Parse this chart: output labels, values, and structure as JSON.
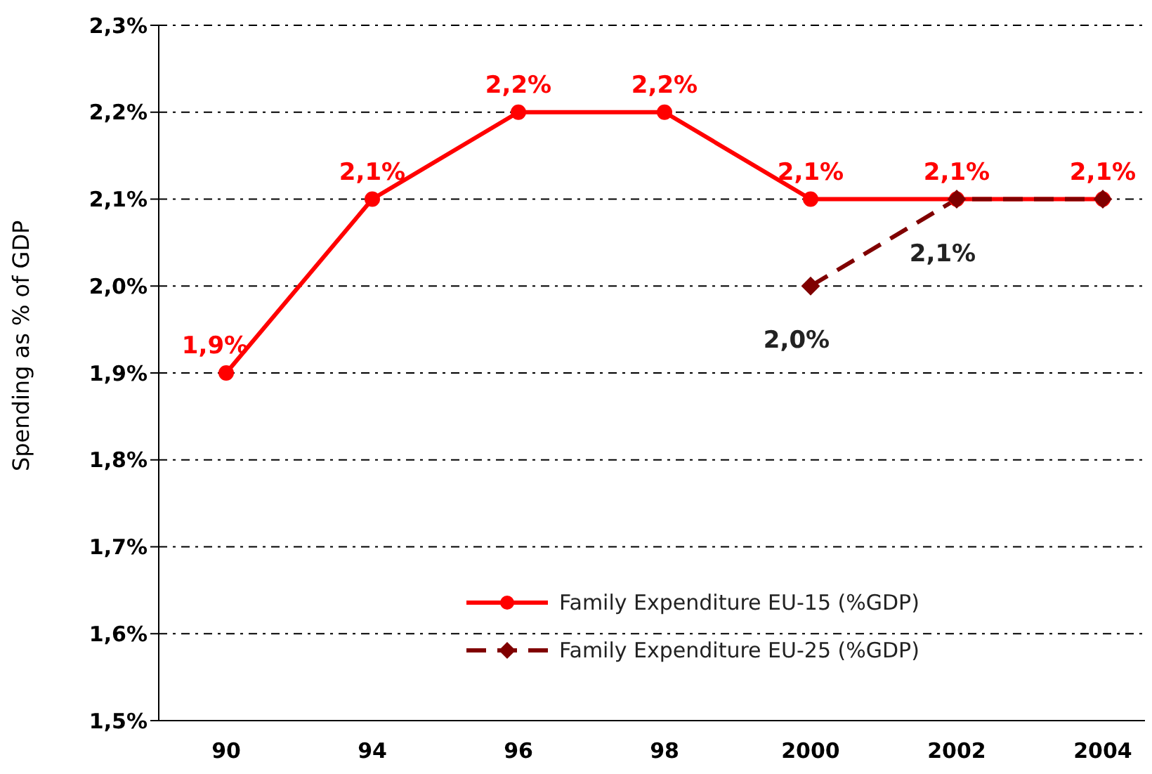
{
  "chart_data": {
    "type": "line",
    "ylabel": "Spending as % of GDP",
    "categories": [
      "90",
      "94",
      "96",
      "98",
      "2000",
      "2002",
      "2004"
    ],
    "series": [
      {
        "name": "Family Expenditure EU-15 (%GDP)",
        "color": "#ff0000",
        "marker": "circle",
        "line_style": "solid",
        "values": [
          1.9,
          2.1,
          2.2,
          2.2,
          2.1,
          2.1,
          2.1
        ],
        "value_labels": [
          "1,9%",
          "2,1%",
          "2,2%",
          "2,2%",
          "2,1%",
          "2,1%",
          "2,1%"
        ]
      },
      {
        "name": "Family Expenditure EU-25 (%GDP)",
        "color": "#800000",
        "marker": "diamond",
        "line_style": "dashed",
        "values": [
          null,
          null,
          null,
          null,
          2.0,
          2.1,
          2.1
        ],
        "value_labels": [
          null,
          null,
          null,
          null,
          "2,0%",
          "2,1%",
          null
        ]
      }
    ],
    "ylim": [
      1.5,
      2.3
    ],
    "yticks": [
      {
        "value": 1.5,
        "label": "1,5%"
      },
      {
        "value": 1.6,
        "label": "1,6%"
      },
      {
        "value": 1.7,
        "label": "1,7%"
      },
      {
        "value": 1.8,
        "label": "1,8%"
      },
      {
        "value": 1.9,
        "label": "1,9%"
      },
      {
        "value": 2.0,
        "label": "2,0%"
      },
      {
        "value": 2.1,
        "label": "2,1%"
      },
      {
        "value": 2.2,
        "label": "2,2%"
      },
      {
        "value": 2.3,
        "label": "2,3%"
      }
    ],
    "grid": "y",
    "legend": "bottom right"
  }
}
